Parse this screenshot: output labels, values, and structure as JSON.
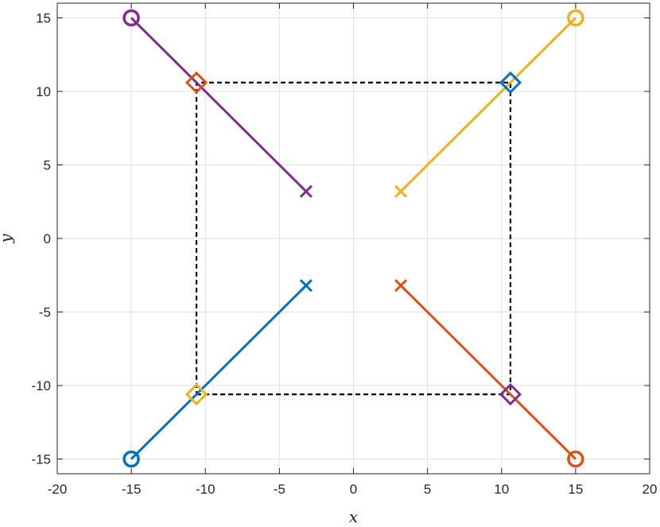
{
  "chart_data": {
    "type": "scatter",
    "title": "",
    "xlabel": "x",
    "ylabel": "y",
    "xlim": [
      -20,
      20
    ],
    "ylim": [
      -16,
      16
    ],
    "xticks": [
      -20,
      -15,
      -10,
      -5,
      0,
      5,
      10,
      15,
      20
    ],
    "yticks": [
      -15,
      -10,
      -5,
      0,
      5,
      10,
      15
    ],
    "xtick_labels": [
      "-20",
      "-15",
      "-10",
      "-5",
      "0",
      "5",
      "10",
      "15",
      "20"
    ],
    "ytick_labels": [
      "-15",
      "-10",
      "-5",
      "0",
      "5",
      "10",
      "15"
    ],
    "grid": true,
    "box": true,
    "legend": "none",
    "series": [
      {
        "color": "#0072BD",
        "line": [
          [
            -15,
            -15
          ],
          [
            -3.2,
            -3.2
          ]
        ],
        "start_circle": [
          -15,
          -15
        ],
        "end_cross": [
          -3.2,
          -3.2
        ],
        "diamond": [
          10.6,
          10.6
        ]
      },
      {
        "color": "#D95319",
        "line": [
          [
            15,
            -15
          ],
          [
            3.2,
            -3.2
          ]
        ],
        "start_circle": [
          15,
          -15
        ],
        "end_cross": [
          3.2,
          -3.2
        ],
        "diamond": [
          -10.6,
          10.6
        ]
      },
      {
        "color": "#EDB120",
        "line": [
          [
            15,
            15
          ],
          [
            3.2,
            3.2
          ]
        ],
        "start_circle": [
          15,
          15
        ],
        "end_cross": [
          3.2,
          3.2
        ],
        "diamond": [
          -10.6,
          -10.6
        ]
      },
      {
        "color": "#7E2F8E",
        "line": [
          [
            -15,
            15
          ],
          [
            -3.2,
            3.2
          ]
        ],
        "start_circle": [
          -15,
          15
        ],
        "end_cross": [
          -3.2,
          3.2
        ],
        "diamond": [
          10.6,
          -10.6
        ]
      }
    ],
    "dashed_square": {
      "color": "#000000",
      "points": [
        [
          -10.6,
          -10.6
        ],
        [
          10.6,
          -10.6
        ],
        [
          10.6,
          10.6
        ],
        [
          -10.6,
          10.6
        ],
        [
          -10.6,
          -10.6
        ]
      ]
    }
  }
}
